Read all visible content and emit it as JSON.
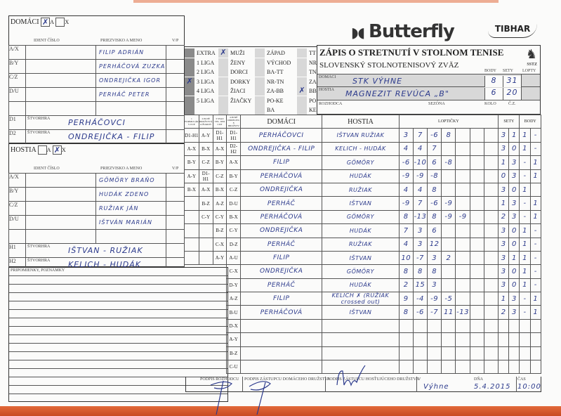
{
  "brand": {
    "logo": "Butterfly",
    "logo2": "TIBHAR",
    "sstz": "SSTZ"
  },
  "title": {
    "main": "ZÁPIS O STRETNUTÍ V STOLNOM TENISE",
    "sub": "SLOVENSKÝ STOLNOTENISOVÝ ZVÄZ",
    "body": "BODY",
    "sety": "SETY",
    "lopty": "LOPTY",
    "domaci_label": "DOMÁCI",
    "domaci_team": "STK VÝHNE",
    "domaci_body": "8",
    "domaci_sety": "31",
    "hostia_label": "HOSTIA",
    "hostia_team": "MAGNEZIT REVÚCA „B\"",
    "hostia_body": "6",
    "hostia_sety": "20",
    "rozhodca": "ROZHODCA",
    "sezona": "SEZÓNA",
    "kolo": "KOLO",
    "cz": "Č.Z."
  },
  "home": {
    "title": "DOMÁCI",
    "a": "A",
    "x": "X",
    "a_mark": "✗",
    "ident": "IDENT ČÍSLO",
    "name": "PRIEZVISKO A MENO",
    "vp": "V/P",
    "players": [
      {
        "pos": "A/X",
        "name": "FILIP ADRIÁN"
      },
      {
        "pos": "B/Y",
        "name": "PERHÁČOVÁ ZUZKA"
      },
      {
        "pos": "C/Z",
        "name": "ONDREJIČKA IGOR"
      },
      {
        "pos": "D/U",
        "name": "PERHÁČ PETER"
      },
      {
        "pos": "",
        "name": ""
      }
    ],
    "doubles": [
      {
        "pos": "D1",
        "lbl": "ŠTVORHRA",
        "name": "PERHÁČOVCI"
      },
      {
        "pos": "D2",
        "lbl": "ŠTVORHRA",
        "name": "ONDREJIČKA - FILIP"
      }
    ]
  },
  "guest": {
    "title": "HOSTIA",
    "a": "A",
    "x": "X",
    "x_mark": "✗",
    "ident": "IDENT ČÍSLO",
    "name": "PRIEZVISKO A MENO",
    "vp": "V/P",
    "players": [
      {
        "pos": "A/X",
        "name": "GÖMÖRY BRAŇO"
      },
      {
        "pos": "B/Y",
        "name": "HUDÁK ZDENO"
      },
      {
        "pos": "C/Z",
        "name": "RUŽIAK JÁN"
      },
      {
        "pos": "D/U",
        "name": "IŠTVÁN MARIÁN"
      },
      {
        "pos": "",
        "name": ""
      }
    ],
    "doubles": [
      {
        "pos": "H1",
        "lbl": "ŠTVORHRA",
        "name": "IŠTVAN - RUŽIAK"
      },
      {
        "pos": "H2",
        "lbl": "ŠTVORHRA",
        "name": "KELICH - HUDÁK"
      }
    ]
  },
  "notes_label": "PRIPOMIENKY, POZNÁMKY",
  "categories": [
    [
      {
        "t": "EXTRA"
      },
      {
        "t": "1 LIGA"
      },
      {
        "t": "2 LIGA"
      },
      {
        "t": "3 LIGA",
        "checked": true
      },
      {
        "t": "4 LIGA"
      },
      {
        "t": "5 LIGA"
      },
      {
        "t": ""
      }
    ],
    [
      {
        "t": "MUŽI",
        "checked": true
      },
      {
        "t": "ŽENY"
      },
      {
        "t": "DORCI"
      },
      {
        "t": "DORKY"
      },
      {
        "t": "ŽIACI"
      },
      {
        "t": "ŽIAČKY"
      },
      {
        "t": ""
      }
    ],
    [
      {
        "t": "ZÁPAD"
      },
      {
        "t": "VÝCHOD"
      },
      {
        "t": "BA-TT"
      },
      {
        "t": "NR-TN"
      },
      {
        "t": "ZA-BB"
      },
      {
        "t": "PO-KE"
      },
      {
        "t": "BA"
      }
    ],
    [
      {
        "t": "TT"
      },
      {
        "t": "NR"
      },
      {
        "t": "TN"
      },
      {
        "t": "ZA"
      },
      {
        "t": "BB",
        "checked": true
      },
      {
        "t": "PO"
      },
      {
        "t": "KE"
      }
    ]
  ],
  "table": {
    "order_headers": [
      "1 FORMULÁR S CUP",
      "2 PLNÉ DRUŽSTVÁ A ŽIAKOV",
      "3 SVAZ TEL. DNI CUP",
      "4 PLNÉ ODDELEN. 8 DRUŽSTV"
    ],
    "h_domaci": "DOMÁCI",
    "h_hostia": "HOSTIA",
    "h_lopticky": "LOPTIČKY",
    "h_sety": "SETY",
    "h_body": "BODY",
    "rows": [
      {
        "o": [
          "D1-H1",
          "A-Y",
          "D1-H1",
          "D1-H1"
        ],
        "d": "PERHÁČOVCI",
        "h": "IŠTVAN RUŽIAK",
        "l": [
          "3",
          "7",
          "-6",
          "8",
          "",
          "",
          ""
        ],
        "s": [
          "3",
          "1"
        ],
        "b": [
          "1",
          "-"
        ]
      },
      {
        "o": [
          "A-X",
          "B-X",
          "A-X",
          "D2-H2"
        ],
        "d": "ONDREJIČKA - FILIP",
        "h": "KELICH - HUDÁK",
        "l": [
          "4",
          "4",
          "7",
          "",
          "",
          "",
          ""
        ],
        "s": [
          "3",
          "0"
        ],
        "b": [
          "1",
          "-"
        ]
      },
      {
        "o": [
          "B-Y",
          "C-Z",
          "B-Y",
          "A-X"
        ],
        "d": "FILIP",
        "h": "GÖMÖRY",
        "l": [
          "-6",
          "-10",
          "6",
          "-8",
          "",
          "",
          ""
        ],
        "s": [
          "1",
          "3"
        ],
        "b": [
          "-",
          "1"
        ]
      },
      {
        "o": [
          "A-Y",
          "D1-H1",
          "C-Z",
          "B-Y"
        ],
        "d": "PERHÁČOVÁ",
        "h": "HUDÁK",
        "l": [
          "-9",
          "-9",
          "-8",
          "",
          "",
          "",
          ""
        ],
        "s": [
          "0",
          "3"
        ],
        "b": [
          "-",
          "1"
        ]
      },
      {
        "o": [
          "B-X",
          "A-X",
          "B-X",
          "C-Z"
        ],
        "d": "ONDREJIČKA",
        "h": "RUŽIAK",
        "l": [
          "4",
          "4",
          "8",
          "",
          "",
          "",
          ""
        ],
        "s": [
          "3",
          "0"
        ],
        "b": [
          "1",
          ""
        ]
      },
      {
        "o": [
          "",
          "B-Z",
          "A-Z",
          "D-U"
        ],
        "d": "PERHÁČ",
        "h": "IŠTVAN",
        "l": [
          "-9",
          "7",
          "-6",
          "-9",
          "",
          "",
          ""
        ],
        "s": [
          "1",
          "3"
        ],
        "b": [
          "-",
          "1"
        ]
      },
      {
        "o": [
          "",
          "C-Y",
          "C-Y",
          "B-X"
        ],
        "d": "PERHÁČOVÁ",
        "h": "GÖMÖRY",
        "l": [
          "8",
          "-13",
          "8",
          "-9",
          "-9",
          "",
          ""
        ],
        "s": [
          "2",
          "3"
        ],
        "b": [
          "-",
          "1"
        ]
      },
      {
        "o": [
          "",
          "",
          "B-Z",
          "C-Y"
        ],
        "d": "ONDREJIČKA",
        "h": "HUDÁK",
        "l": [
          "7",
          "3",
          "6",
          "",
          "",
          "",
          ""
        ],
        "s": [
          "3",
          "0"
        ],
        "b": [
          "1",
          "-"
        ]
      },
      {
        "o": [
          "",
          "",
          "C-X",
          "D-Z"
        ],
        "d": "PERHÁČ",
        "h": "RUŽIAK",
        "l": [
          "4",
          "3",
          "12",
          "",
          "",
          "",
          ""
        ],
        "s": [
          "3",
          "0"
        ],
        "b": [
          "1",
          "-"
        ]
      },
      {
        "o": [
          "",
          "",
          "A-Y",
          "A-U"
        ],
        "d": "FILIP",
        "h": "IŠTVAN",
        "l": [
          "10",
          "-7",
          "3",
          "2",
          "",
          "",
          ""
        ],
        "s": [
          "3",
          "1"
        ],
        "b": [
          "1",
          "-"
        ]
      },
      {
        "o": [
          "",
          "",
          "",
          "C-X"
        ],
        "d": "ONDREJIČKA",
        "h": "GÖMÖRY",
        "l": [
          "8",
          "8",
          "8",
          "",
          "",
          "",
          ""
        ],
        "s": [
          "3",
          "0"
        ],
        "b": [
          "1",
          "-"
        ]
      },
      {
        "o": [
          "",
          "",
          "",
          "D-Y"
        ],
        "d": "PERHÁČ",
        "h": "HUDÁK",
        "l": [
          "2",
          "15",
          "3",
          "",
          "",
          "",
          ""
        ],
        "s": [
          "3",
          "0"
        ],
        "b": [
          "1",
          "-"
        ]
      },
      {
        "o": [
          "",
          "",
          "",
          "A-Z"
        ],
        "d": "FILIP",
        "h": "KELICH ✗ (RUŽIAK crossed out)",
        "l": [
          "9",
          "-4",
          "-9",
          "-5",
          "",
          "",
          ""
        ],
        "s": [
          "1",
          "3"
        ],
        "b": [
          "-",
          "1"
        ]
      },
      {
        "o": [
          "",
          "",
          "",
          "B-U"
        ],
        "d": "PERHÁČOVÁ",
        "h": "IŠTVAN",
        "l": [
          "8",
          "-6",
          "-7",
          "11",
          "-13",
          "",
          ""
        ],
        "s": [
          "2",
          "3"
        ],
        "b": [
          "-",
          "1"
        ]
      },
      {
        "o": [
          "",
          "",
          "",
          "D-X"
        ],
        "d": "",
        "h": "",
        "l": [
          "",
          "",
          "",
          "",
          "",
          "",
          ""
        ],
        "s": [
          "",
          ""
        ],
        "b": [
          "",
          ""
        ]
      },
      {
        "o": [
          "",
          "",
          "",
          "A-Y"
        ],
        "d": "",
        "h": "",
        "l": [
          "",
          "",
          "",
          "",
          "",
          "",
          ""
        ],
        "s": [
          "",
          ""
        ],
        "b": [
          "",
          ""
        ]
      },
      {
        "o": [
          "",
          "",
          "",
          "B-Z"
        ],
        "d": "",
        "h": "",
        "l": [
          "",
          "",
          "",
          "",
          "",
          "",
          ""
        ],
        "s": [
          "",
          ""
        ],
        "b": [
          "",
          ""
        ]
      },
      {
        "o": [
          "",
          "",
          "",
          "C-U"
        ],
        "d": "",
        "h": "",
        "l": [
          "",
          "",
          "",
          "",
          "",
          "",
          ""
        ],
        "s": [
          "",
          ""
        ],
        "b": [
          "",
          ""
        ]
      }
    ]
  },
  "footer": {
    "podpis_rozhodcu": "PODPIS ROZHODCU",
    "podpis_domaci": "PODPIS ZÁSTUPCU DOMÁCEHO DRUŽSTVA",
    "podpis_hostia": "PODPIS ZÁSTUPCU HOSŤUJÚCEHO DRUŽSTVA",
    "v_label": "V",
    "v": "Výhne",
    "dna_label": "DŇA",
    "dna": "5.4.2015",
    "cas_label": "ČAS",
    "cas": "10:00"
  },
  "colors": {
    "ink": "#2c3a8c",
    "paper": "#fbfbfa",
    "strip": "#d4582c"
  }
}
